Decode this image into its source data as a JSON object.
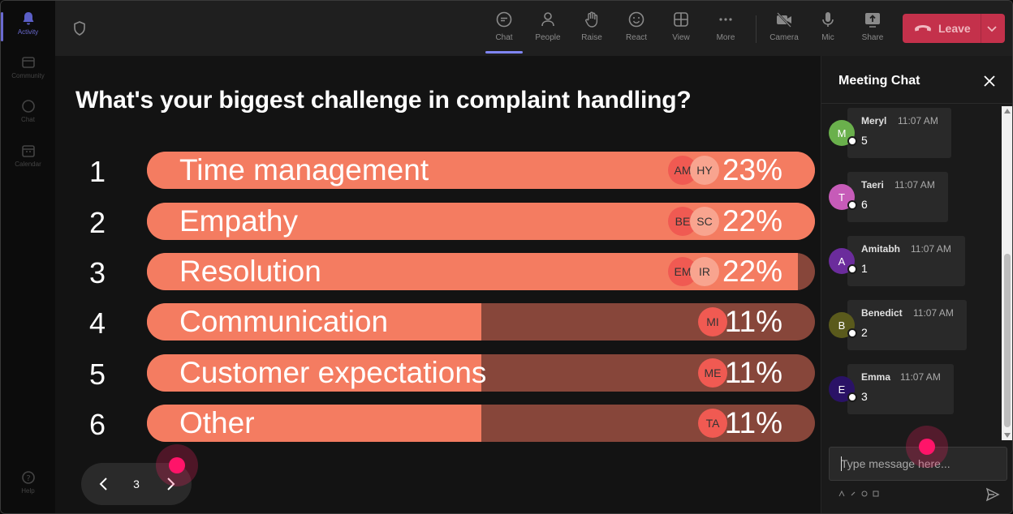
{
  "rail": {
    "items": [
      {
        "label": "Activity",
        "icon": "bell-icon",
        "active": true
      },
      {
        "label": "Community",
        "icon": "community-icon",
        "active": false
      },
      {
        "label": "Chat",
        "icon": "chat-icon",
        "active": false
      },
      {
        "label": "Calendar",
        "icon": "calendar-icon",
        "active": false
      }
    ],
    "help_label": "Help"
  },
  "toolbar": {
    "tools": [
      {
        "label": "Chat",
        "icon": "chat-icon",
        "active": true
      },
      {
        "label": "People",
        "icon": "people-icon",
        "active": false
      },
      {
        "label": "Raise",
        "icon": "hand-icon",
        "active": false
      },
      {
        "label": "React",
        "icon": "smiley-icon",
        "active": false
      },
      {
        "label": "View",
        "icon": "grid-icon",
        "active": false
      },
      {
        "label": "More",
        "icon": "more-icon",
        "active": false
      },
      {
        "label": "Camera",
        "icon": "camera-off-icon",
        "active": false
      },
      {
        "label": "Mic",
        "icon": "mic-icon",
        "active": false
      },
      {
        "label": "Share",
        "icon": "share-icon",
        "active": false
      }
    ],
    "leave_label": "Leave"
  },
  "poll": {
    "question": "What's your biggest challenge in complaint handling?",
    "options": [
      {
        "rank": "1",
        "label": "Time management",
        "percent": "23%",
        "fill": 1.0,
        "voters": [
          "AM",
          "HY"
        ]
      },
      {
        "rank": "2",
        "label": "Empathy",
        "percent": "22%",
        "fill": 1.0,
        "voters": [
          "BE",
          "SC"
        ]
      },
      {
        "rank": "3",
        "label": "Resolution",
        "percent": "22%",
        "fill": 0.975,
        "voters": [
          "EM",
          "IR"
        ]
      },
      {
        "rank": "4",
        "label": "Communication",
        "percent": "11%",
        "fill": 0.5,
        "voters": [
          "MI"
        ]
      },
      {
        "rank": "5",
        "label": "Customer expectations",
        "percent": "11%",
        "fill": 0.5,
        "voters": [
          "ME"
        ]
      },
      {
        "rank": "6",
        "label": "Other",
        "percent": "11%",
        "fill": 0.5,
        "voters": [
          "TA"
        ]
      }
    ]
  },
  "pager": {
    "page": "3"
  },
  "chat": {
    "title": "Meeting Chat",
    "messages": [
      {
        "initial": "M",
        "name": "Meryl",
        "time": "11:07 AM",
        "text": "5",
        "color": "#6ab04c"
      },
      {
        "initial": "T",
        "name": "Taeri",
        "time": "11:07 AM",
        "text": "6",
        "color": "#c65bb8"
      },
      {
        "initial": "A",
        "name": "Amitabh",
        "time": "11:07 AM",
        "text": "1",
        "color": "#6b2c9c"
      },
      {
        "initial": "B",
        "name": "Benedict",
        "time": "11:07 AM",
        "text": "2",
        "color": "#5a5a1c"
      },
      {
        "initial": "E",
        "name": "Emma",
        "time": "11:07 AM",
        "text": "3",
        "color": "#2a1266"
      }
    ],
    "input_placeholder": "Type message here..."
  },
  "colors": {
    "bar_fill": "#f47c61",
    "bar_track": "#87463a",
    "leave": "#c4314b",
    "accent": "#7f85f5",
    "cursor": "#ff1469"
  }
}
